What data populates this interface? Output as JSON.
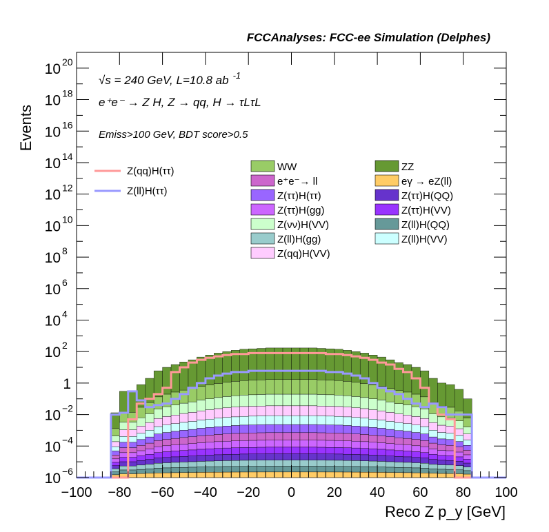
{
  "chart_data": {
    "type": "area",
    "title": "FCCAnalyses: FCC-ee Simulation (Delphes)",
    "xlabel": "Reco Z p_y [GeV]",
    "ylabel": "Events",
    "xlim": [
      -100,
      100
    ],
    "ylim": [
      1e-06,
      1e+21
    ],
    "yscale": "log",
    "grid": false,
    "legend_placement": "top",
    "x_ticks": [
      "−100",
      "−80",
      "−60",
      "−40",
      "−20",
      "0",
      "20",
      "40",
      "60",
      "80",
      "100"
    ],
    "y_ticks": [
      {
        "base": "10",
        "exp": "−6"
      },
      {
        "base": "10",
        "exp": "−4"
      },
      {
        "base": "10",
        "exp": "−2"
      },
      {
        "base": "1",
        "exp": ""
      },
      {
        "base": "10",
        "exp": "2"
      },
      {
        "base": "10",
        "exp": "4"
      },
      {
        "base": "10",
        "exp": "6"
      },
      {
        "base": "10",
        "exp": "8"
      },
      {
        "base": "10",
        "exp": "10"
      },
      {
        "base": "10",
        "exp": "12"
      },
      {
        "base": "10",
        "exp": "14"
      },
      {
        "base": "10",
        "exp": "16"
      },
      {
        "base": "10",
        "exp": "18"
      },
      {
        "base": "10",
        "exp": "20"
      }
    ],
    "annotations": {
      "energy": "√s = 240 GeV, L=10.8 ab",
      "energy_exp": "-1",
      "process": "e⁺e⁻ → Z H, Z → qq, H → τLτL",
      "selection": "Emiss>100 GeV, BDT score>0.5"
    },
    "signal_legend": [
      {
        "name": "Z(qq)H(ττ)",
        "color": "#ff9999"
      },
      {
        "name": "Z(ll)H(ττ)",
        "color": "#9999ff"
      }
    ],
    "background_legend": [
      {
        "name": "WW",
        "color": "#99cc66"
      },
      {
        "name": "ZZ",
        "color": "#669933"
      },
      {
        "name": "e⁺e⁻→ ll",
        "color": "#cc66cc"
      },
      {
        "name": "eγ → eZ(ll)",
        "color": "#ffcc66"
      },
      {
        "name": "Z(ττ)H(ττ)",
        "color": "#9966ff"
      },
      {
        "name": "Z(ττ)H(QQ)",
        "color": "#6633cc"
      },
      {
        "name": "Z(ττ)H(gg)",
        "color": "#cc66ff"
      },
      {
        "name": "Z(ττ)H(VV)",
        "color": "#9933ff"
      },
      {
        "name": "Z(νν)H(VV)",
        "color": "#ccffcc"
      },
      {
        "name": "Z(ll)H(QQ)",
        "color": "#669999"
      },
      {
        "name": "Z(ll)H(gg)",
        "color": "#99cccc"
      },
      {
        "name": "Z(ll)H(VV)",
        "color": "#ccffff"
      },
      {
        "name": "Z(qq)H(VV)",
        "color": "#ffccff"
      }
    ],
    "bin_edges": [
      -100,
      -96,
      -92,
      -88,
      -84,
      -80,
      -76,
      -72,
      -68,
      -64,
      -60,
      -56,
      -52,
      -48,
      -44,
      -40,
      -36,
      -32,
      -28,
      -24,
      -20,
      -16,
      -12,
      -8,
      -4,
      0,
      4,
      8,
      12,
      16,
      20,
      24,
      28,
      32,
      36,
      40,
      44,
      48,
      52,
      56,
      60,
      64,
      68,
      72,
      76,
      80,
      84,
      88,
      92,
      96,
      100
    ],
    "stack_total": [
      1e-06,
      1e-06,
      1e-06,
      1e-06,
      0.013,
      0.3,
      0.3,
      0.8,
      2,
      6,
      10,
      15,
      22,
      30,
      45,
      60,
      80,
      100,
      120,
      140,
      150,
      160,
      170,
      170,
      170,
      170,
      170,
      170,
      160,
      150,
      140,
      120,
      100,
      80,
      60,
      45,
      30,
      20,
      15,
      10,
      6,
      2,
      1,
      0.8,
      0.4,
      0.1,
      1e-06,
      1e-06,
      1e-06,
      1e-06
    ],
    "series": [
      {
        "name": "Z(qq)H(ττ)",
        "values": [
          1e-06,
          1e-06,
          1e-06,
          1e-06,
          1e-06,
          1e-06,
          0.005,
          0.05,
          0.1,
          0.2,
          0.5,
          5,
          10,
          20,
          30,
          40,
          50,
          60,
          70,
          70,
          80,
          80,
          80,
          80,
          80,
          80,
          80,
          80,
          80,
          70,
          70,
          60,
          50,
          40,
          30,
          20,
          15,
          8,
          5,
          2,
          0.5,
          0.05,
          0.01,
          0.005,
          1e-06,
          1e-06,
          1e-06,
          1e-06,
          1e-06,
          1e-06
        ]
      },
      {
        "name": "Z(ll)H(ττ)",
        "values": [
          1e-06,
          1e-06,
          1e-06,
          1e-06,
          0.01,
          0.013,
          0.3,
          0.08,
          0.03,
          0.04,
          0.05,
          0.1,
          0.2,
          0.5,
          1,
          2,
          3,
          4,
          5,
          5,
          6,
          6,
          6,
          6,
          6,
          6,
          6,
          6,
          6,
          5,
          5,
          4,
          3,
          2,
          1,
          0.5,
          0.3,
          0.2,
          0.1,
          0.05,
          0.03,
          0.05,
          0.03,
          0.01,
          0.01,
          0.01,
          1e-06,
          1e-06,
          1e-06,
          1e-06
        ]
      }
    ]
  }
}
